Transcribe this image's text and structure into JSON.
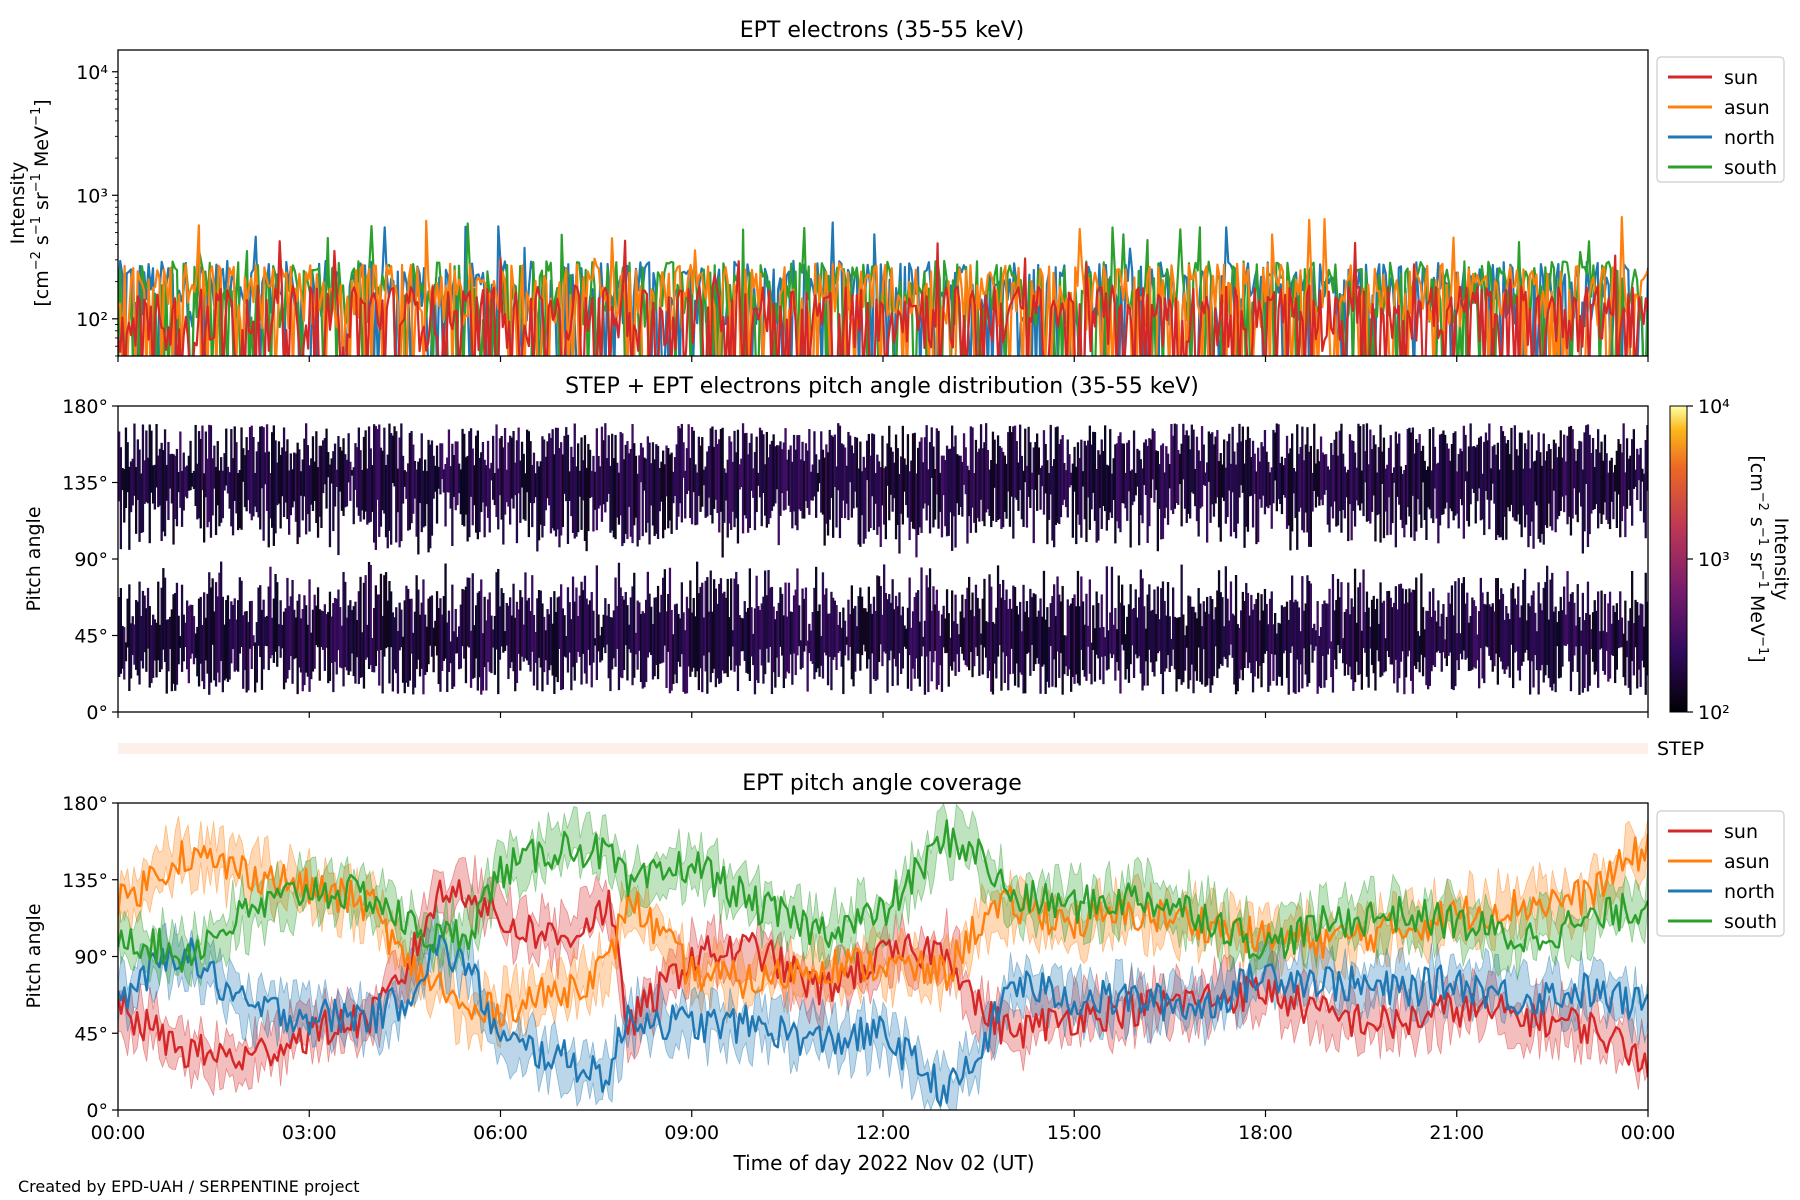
{
  "footer": "Created by EPD-UAH / SERPENTINE project",
  "x_axis": {
    "label": "Time of day 2022 Nov 02 (UT)",
    "tick_labels": [
      "00:00",
      "03:00",
      "06:00",
      "09:00",
      "12:00",
      "15:00",
      "18:00",
      "21:00",
      "00:00"
    ],
    "range_hours": [
      0,
      24
    ]
  },
  "colors": {
    "sun": "#d62728",
    "asun": "#ff7f0e",
    "north": "#1f77b4",
    "south": "#2ca02c",
    "step_bar": "#fdf0ea"
  },
  "legend_entries": [
    "sun",
    "asun",
    "north",
    "south"
  ],
  "step_label": "STEP",
  "chart_data": [
    {
      "type": "line",
      "title": "EPT electrons (35-55 keV)",
      "ylabel": "Intensity",
      "yunits": "[cm$^{-2}$ s$^{-1}$ sr$^{-1}$ MeV$^{-1}$]",
      "yscale": "log",
      "ylim": [
        50,
        15000
      ],
      "ytick_labels": [
        "10²",
        "10³",
        "10⁴"
      ],
      "legend": "upper right outside",
      "series": [
        {
          "name": "sun",
          "typical": 120,
          "peak": 450
        },
        {
          "name": "asun",
          "typical": 180,
          "peak": 700
        },
        {
          "name": "north",
          "typical": 190,
          "peak": 650
        },
        {
          "name": "south",
          "typical": 190,
          "peak": 650
        }
      ]
    },
    {
      "type": "heatmap",
      "title": "STEP + EPT electrons pitch angle distribution (35-55 keV)",
      "ylabel": "Pitch angle",
      "ylim": [
        0,
        180
      ],
      "ytick_labels": [
        "0°",
        "45°",
        "90°",
        "135°",
        "180°"
      ],
      "colorbar": {
        "label": "Intensity",
        "units": "[cm$^{-2}$ s$^{-1}$ sr$^{-1}$ MeV$^{-1}$]",
        "range": [
          100,
          10000
        ],
        "tick_labels": [
          "10²",
          "10³",
          "10⁴"
        ],
        "colormap": "inferno"
      }
    },
    {
      "type": "area",
      "title": "EPT pitch angle coverage",
      "ylabel": "Pitch angle",
      "ylim": [
        0,
        180
      ],
      "ytick_labels": [
        "0°",
        "45°",
        "90°",
        "135°",
        "180°"
      ],
      "legend": "upper right outside",
      "series": [
        {
          "name": "sun",
          "x": [
            0,
            1,
            2,
            3,
            4,
            4.5,
            5,
            5.5,
            6,
            7,
            7.7,
            8,
            9,
            10,
            11,
            12,
            13,
            13.5,
            14,
            15,
            16,
            17,
            18,
            19,
            20,
            21,
            22,
            23,
            24
          ],
          "y": [
            60,
            35,
            30,
            45,
            55,
            80,
            125,
            130,
            110,
            100,
            120,
            50,
            90,
            95,
            70,
            90,
            95,
            60,
            45,
            55,
            60,
            65,
            70,
            55,
            50,
            60,
            55,
            50,
            30
          ]
        },
        {
          "name": "asun",
          "x": [
            0,
            1,
            2,
            3,
            4,
            4.5,
            5,
            5.5,
            6,
            7,
            7.7,
            8,
            9,
            10,
            11,
            12,
            13,
            13.5,
            14,
            15,
            16,
            17,
            18,
            19,
            20,
            21,
            22,
            23,
            24
          ],
          "y": [
            120,
            150,
            140,
            130,
            120,
            85,
            75,
            55,
            60,
            70,
            85,
            125,
            80,
            75,
            85,
            85,
            80,
            110,
            120,
            110,
            115,
            110,
            100,
            100,
            105,
            115,
            120,
            125,
            155
          ]
        },
        {
          "name": "north",
          "x": [
            0,
            1,
            2,
            3,
            4,
            4.5,
            5,
            5.5,
            6,
            7,
            7.7,
            8,
            9,
            10,
            11,
            12,
            13,
            13.5,
            14,
            15,
            16,
            17,
            18,
            19,
            20,
            21,
            22,
            23,
            24
          ],
          "y": [
            65,
            95,
            60,
            55,
            55,
            65,
            95,
            85,
            40,
            30,
            20,
            55,
            50,
            50,
            40,
            45,
            10,
            30,
            75,
            65,
            65,
            60,
            80,
            75,
            70,
            75,
            65,
            70,
            60
          ]
        },
        {
          "name": "south",
          "x": [
            0,
            1,
            2,
            3,
            4,
            4.5,
            5,
            5.5,
            6,
            7,
            7.7,
            8,
            9,
            10,
            11,
            12,
            13,
            13.5,
            14,
            15,
            16,
            17,
            18,
            19,
            20,
            21,
            22,
            23,
            24
          ],
          "y": [
            105,
            90,
            115,
            130,
            125,
            110,
            100,
            105,
            140,
            155,
            150,
            130,
            145,
            120,
            105,
            115,
            160,
            150,
            125,
            120,
            125,
            115,
            95,
            110,
            115,
            110,
            100,
            110,
            120
          ]
        }
      ]
    }
  ]
}
